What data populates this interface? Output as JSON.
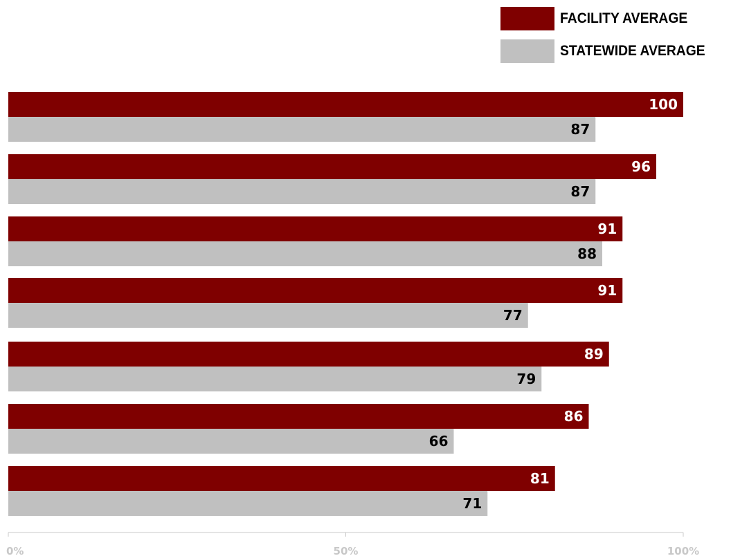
{
  "legend": {
    "facility_label": "FACILITY AVERAGE",
    "statewide_label": "STATEWIDE AVERAGE"
  },
  "colors": {
    "facility": "#7f0000",
    "statewide": "#c0c0c0",
    "facility_text": "#ffffff",
    "statewide_text": "#000000",
    "axis": "#c8c8c8",
    "tick_text": "#c8c8c8"
  },
  "chart_data": {
    "type": "bar",
    "orientation": "horizontal",
    "xlim": [
      0,
      100
    ],
    "xticks": [
      {
        "value": 0,
        "label": "0%"
      },
      {
        "value": 50,
        "label": "50%"
      },
      {
        "value": 100,
        "label": "100%"
      }
    ],
    "grid": false,
    "legend_position": "top-right",
    "series": [
      {
        "name": "FACILITY AVERAGE",
        "values": [
          100,
          96,
          91,
          91,
          89,
          86,
          81
        ]
      },
      {
        "name": "STATEWIDE AVERAGE",
        "values": [
          87,
          87,
          88,
          77,
          79,
          66,
          71
        ]
      }
    ]
  }
}
